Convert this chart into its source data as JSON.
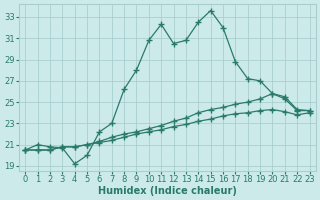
{
  "title": "",
  "xlabel": "Humidex (Indice chaleur)",
  "ylabel": "",
  "bg_color": "#cceaea",
  "grid_color": "#aacece",
  "line_color": "#2a7a6a",
  "xlim": [
    -0.5,
    23.5
  ],
  "ylim": [
    18.5,
    34.2
  ],
  "xticks": [
    0,
    1,
    2,
    3,
    4,
    5,
    6,
    7,
    8,
    9,
    10,
    11,
    12,
    13,
    14,
    15,
    16,
    17,
    18,
    19,
    20,
    21,
    22,
    23
  ],
  "yticks": [
    19,
    21,
    23,
    25,
    27,
    29,
    31,
    33
  ],
  "line1_x": [
    0,
    1,
    2,
    3,
    4,
    5,
    6,
    7,
    8,
    9,
    10,
    11,
    12,
    13,
    14,
    15,
    16,
    17,
    18,
    19,
    20,
    21,
    22,
    23
  ],
  "line1_y": [
    20.5,
    21.0,
    20.8,
    20.7,
    19.2,
    20.0,
    22.2,
    23.0,
    26.2,
    28.0,
    30.8,
    32.3,
    30.5,
    30.8,
    32.5,
    33.6,
    32.0,
    28.8,
    27.2,
    27.0,
    25.8,
    25.3,
    24.2,
    24.2
  ],
  "line2_x": [
    0,
    1,
    2,
    3,
    4,
    5,
    6,
    7,
    8,
    9,
    10,
    11,
    12,
    13,
    14,
    15,
    16,
    17,
    18,
    19,
    20,
    21,
    22,
    23
  ],
  "line2_y": [
    20.5,
    20.5,
    20.5,
    20.8,
    20.8,
    21.0,
    21.3,
    21.7,
    22.0,
    22.2,
    22.5,
    22.8,
    23.2,
    23.5,
    24.0,
    24.3,
    24.5,
    24.8,
    25.0,
    25.3,
    25.8,
    25.5,
    24.3,
    24.2
  ],
  "line3_x": [
    0,
    1,
    2,
    3,
    4,
    5,
    6,
    7,
    8,
    9,
    10,
    11,
    12,
    13,
    14,
    15,
    16,
    17,
    18,
    19,
    20,
    21,
    22,
    23
  ],
  "line3_y": [
    20.5,
    20.5,
    20.5,
    20.8,
    20.8,
    21.0,
    21.2,
    21.4,
    21.7,
    22.0,
    22.2,
    22.4,
    22.7,
    22.9,
    23.2,
    23.4,
    23.7,
    23.9,
    24.0,
    24.2,
    24.3,
    24.1,
    23.8,
    24.0
  ],
  "marker": "+",
  "markersize": 4,
  "markeredgewidth": 1.0,
  "linewidth": 0.9,
  "xlabel_fontsize": 7,
  "tick_fontsize": 6
}
